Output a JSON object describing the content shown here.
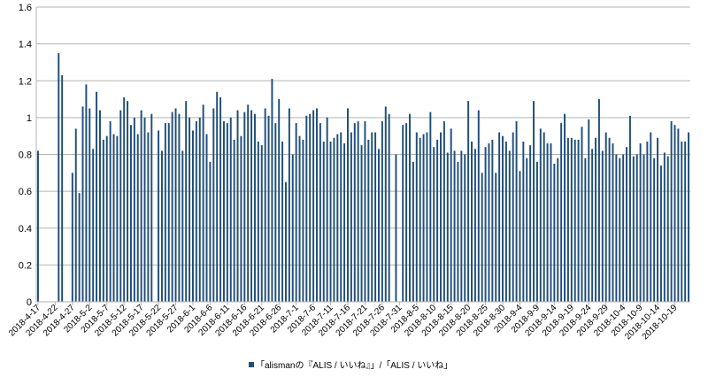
{
  "chart_data": {
    "type": "bar",
    "title": "",
    "xlabel": "",
    "ylabel": "",
    "ylim": [
      0,
      1.6
    ],
    "yticks": [
      "0",
      "0.2",
      "0.4",
      "0.6",
      "0.8",
      "1",
      "1.2",
      "1.4",
      "1.6"
    ],
    "grid": "horizontal",
    "legend_position": "bottom",
    "start_date": "2018-4-17",
    "end_date": "2018-10-23",
    "xtick_labels": [
      "2018-4-17",
      "2018-4-22",
      "2018-4-27",
      "2018-5-2",
      "2018-5-7",
      "2018-5-12",
      "2018-5-17",
      "2018-5-22",
      "2018-5-27",
      "2018-6-1",
      "2018-6-6",
      "2018-6-11",
      "2018-6-16",
      "2018-6-21",
      "2018-6-26",
      "2018-7-1",
      "2018-7-6",
      "2018-7-11",
      "2018-7-16",
      "2018-7-21",
      "2018-7-26",
      "2018-7-31",
      "2018-8-5",
      "2018-8-10",
      "2018-8-15",
      "2018-8-20",
      "2018-8-25",
      "2018-8-30",
      "2018-9-4",
      "2018-9-9",
      "2018-9-14",
      "2018-9-19",
      "2018-9-24",
      "2018-9-29",
      "2018-10-4",
      "2018-10-9",
      "2018-10-14",
      "2018-10-19"
    ],
    "series": [
      {
        "name": "「alismanの『ALIS / いいね』」/「ALIS / いいね」",
        "color": "#1f4e79",
        "values": [
          0.82,
          0,
          0,
          0,
          0,
          0,
          1.35,
          1.23,
          0,
          0,
          0.7,
          0.94,
          0.59,
          1.06,
          1.18,
          1.05,
          0.83,
          1.14,
          1.04,
          0.88,
          0.9,
          0.98,
          0.91,
          0.9,
          1.04,
          1.11,
          1.09,
          0.96,
          1,
          0.91,
          1.04,
          1,
          0.92,
          1.02,
          0,
          0.93,
          0.82,
          0.97,
          0.97,
          1.03,
          1.05,
          1.02,
          0.82,
          1.09,
          1,
          0.93,
          0.98,
          1,
          1.07,
          0.91,
          0.76,
          1.05,
          1.14,
          1.11,
          0.98,
          0.97,
          1,
          0.88,
          1.04,
          0.9,
          1.03,
          1.07,
          1.04,
          1.02,
          0.87,
          0.85,
          1.05,
          1.01,
          1.21,
          0.97,
          1.1,
          0.87,
          0.65,
          1.05,
          0.8,
          0.97,
          0.9,
          0.88,
          1.01,
          1.02,
          1.04,
          1.05,
          0.97,
          0.87,
          1,
          0.87,
          0.89,
          0.91,
          0.92,
          0.86,
          1.05,
          0.92,
          0.97,
          0.98,
          0.85,
          0.98,
          0.88,
          0.92,
          0.92,
          0.83,
          0.98,
          1.06,
          1.02,
          0,
          0.8,
          0,
          0.96,
          0.97,
          1.02,
          0.76,
          0.92,
          0.89,
          0.91,
          0.92,
          1.03,
          0.84,
          0.88,
          0.92,
          0.98,
          0.81,
          0.94,
          0.82,
          0.76,
          0.82,
          0.8,
          1.09,
          0.87,
          0.83,
          1.04,
          0.7,
          0.84,
          0.86,
          0.88,
          0.7,
          0.92,
          0.9,
          0.87,
          0.82,
          0.92,
          0.98,
          0.71,
          0.87,
          0.78,
          0.85,
          1.09,
          0.76,
          0.94,
          0.92,
          0.86,
          0.86,
          0.75,
          0.78,
          0.97,
          1.02,
          0.89,
          0.89,
          0.88,
          0.88,
          0.95,
          0.78,
          0.99,
          0.83,
          0.89,
          1.1,
          0.82,
          0.92,
          0.89,
          0.86,
          0.8,
          0.78,
          0.8,
          0.84,
          1.01,
          0.79,
          0.8,
          0.86,
          0.8,
          0.87,
          0.92,
          0.78,
          0.89,
          0.74,
          0.81,
          0.79,
          0.98,
          0.96,
          0.94,
          0.87,
          0.87,
          0.92
        ]
      }
    ]
  }
}
